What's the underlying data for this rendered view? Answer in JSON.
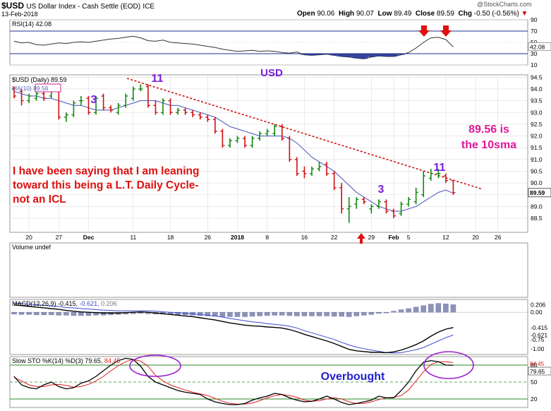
{
  "header": {
    "ticker": "$USD",
    "name": "US Dollar Index - Cash Settle (EOD)",
    "exchange": "ICE",
    "date": "13-Feb-2018",
    "open_label": "Open",
    "open": "90.06",
    "high_label": "High",
    "high": "90.07",
    "low_label": "Low",
    "low": "89.49",
    "close_label": "Close",
    "close": "89.59",
    "chg_label": "Chg",
    "chg": "-0.50 (-0.56%)",
    "chg_arrow": "▼",
    "brand": "@StockCharts.com"
  },
  "colors": {
    "up": "#118811",
    "down": "#cc1111",
    "ma": "#5563c0",
    "rsi_fill": "#1f2f90",
    "trend": "#cc1111",
    "annotation_red": "#dd1111",
    "annotation_magenta": "#e0189a",
    "annotation_purple": "#7a1fd8",
    "annotation_blue": "#1f1fcc",
    "grid": "#dddddd"
  },
  "chart_data": [
    {
      "type": "line",
      "title": "RSI(14) 42.08",
      "ylim": [
        10,
        90
      ],
      "y_ticks": [
        "90",
        "70",
        "50",
        "30",
        "10"
      ],
      "value_label": "42.08",
      "x": [
        "Nov 16",
        "Nov 17",
        "Nov 20",
        "Nov 21",
        "Nov 22",
        "Nov 24",
        "Nov 27",
        "Nov 28",
        "Nov 29",
        "Nov 30",
        "Dec 1",
        "Dec 4",
        "Dec 5",
        "Dec 6",
        "Dec 7",
        "Dec 8",
        "Dec 11",
        "Dec 12",
        "Dec 13",
        "Dec 14",
        "Dec 15",
        "Dec 18",
        "Dec 19",
        "Dec 20",
        "Dec 21",
        "Dec 22",
        "Dec 26",
        "Dec 27",
        "Dec 28",
        "Dec 29",
        "Jan 2",
        "Jan 3",
        "Jan 4",
        "Jan 5",
        "Jan 8",
        "Jan 9",
        "Jan 10",
        "Jan 11",
        "Jan 12",
        "Jan 16",
        "Jan 17",
        "Jan 18",
        "Jan 19",
        "Jan 22",
        "Jan 23",
        "Jan 24",
        "Jan 25",
        "Jan 26",
        "Jan 29",
        "Jan 30",
        "Jan 31",
        "Feb 1",
        "Feb 2",
        "Feb 5",
        "Feb 6",
        "Feb 7",
        "Feb 8",
        "Feb 9",
        "Feb 12",
        "Feb 13"
      ],
      "values": [
        52,
        49,
        50,
        46,
        45,
        47,
        49,
        48,
        50,
        51,
        50,
        52,
        54,
        56,
        57,
        59,
        61,
        58,
        53,
        52,
        54,
        50,
        49,
        48,
        47,
        45,
        43,
        41,
        38,
        36,
        34,
        35,
        36,
        34,
        35,
        34,
        32,
        31,
        33,
        28,
        27,
        28,
        29,
        27,
        25,
        24,
        22,
        21,
        24,
        26,
        25,
        25,
        28,
        32,
        40,
        50,
        58,
        59,
        55,
        42
      ]
    },
    {
      "type": "candlestick",
      "title": "$USD (Daily) 89.59",
      "ylim": [
        87.9,
        94.6
      ],
      "y_ticks": [
        "94.5",
        "94.0",
        "93.5",
        "93.0",
        "92.5",
        "92.0",
        "91.5",
        "91.0",
        "90.5",
        "90.0",
        "89.5",
        "89.0",
        "88.5"
      ],
      "x_ticks": [
        "20",
        "27",
        "Dec",
        "11",
        "18",
        "26",
        "2018",
        "8",
        "16",
        "22",
        "29",
        "Feb",
        "5",
        "12",
        "20",
        "26"
      ],
      "x_tick_positions_index": [
        2,
        6,
        10,
        16,
        21,
        26,
        30,
        34,
        39,
        43,
        48,
        51,
        53,
        58,
        63,
        67
      ],
      "open": [
        94.0,
        93.9,
        93.5,
        93.6,
        93.8,
        93.7,
        93.9,
        92.8,
        92.9,
        93.5,
        93.6,
        93.0,
        93.7,
        93.2,
        93.0,
        93.3,
        93.6,
        94.0,
        94.1,
        93.3,
        93.0,
        93.5,
        93.0,
        93.1,
        93.0,
        92.9,
        92.8,
        92.7,
        92.2,
        91.6,
        91.8,
        91.9,
        91.6,
        91.9,
        92.1,
        92.1,
        92.4,
        91.9,
        91.0,
        90.5,
        90.4,
        90.6,
        90.8,
        90.4,
        89.8,
        88.9,
        89.1,
        89.3,
        88.9,
        89.0,
        89.2,
        88.8,
        88.7,
        89.1,
        89.2,
        89.5,
        90.2,
        90.4,
        90.3,
        90.1
      ],
      "close": [
        93.7,
        93.5,
        93.7,
        93.8,
        93.6,
        93.9,
        92.8,
        92.9,
        93.4,
        93.5,
        93.0,
        93.6,
        93.2,
        93.1,
        93.3,
        93.7,
        94.0,
        94.0,
        93.3,
        93.0,
        93.5,
        93.0,
        93.1,
        93.0,
        92.9,
        92.8,
        92.7,
        92.2,
        91.6,
        91.8,
        91.9,
        91.6,
        91.9,
        92.1,
        92.2,
        92.4,
        91.9,
        91.0,
        90.4,
        90.4,
        90.6,
        90.7,
        90.4,
        89.8,
        88.9,
        89.0,
        89.3,
        89.2,
        89.0,
        89.2,
        88.8,
        88.6,
        89.1,
        89.3,
        89.6,
        90.3,
        90.4,
        90.4,
        90.1,
        89.59
      ],
      "high": [
        94.1,
        94.0,
        93.8,
        93.9,
        93.9,
        94.0,
        94.0,
        93.0,
        93.5,
        93.7,
        93.7,
        93.7,
        93.8,
        93.3,
        93.4,
        93.8,
        94.1,
        94.2,
        94.2,
        93.5,
        93.6,
        93.6,
        93.2,
        93.2,
        93.1,
        93.0,
        92.9,
        92.8,
        92.3,
        91.9,
        92.0,
        92.0,
        92.0,
        92.2,
        92.3,
        92.5,
        92.5,
        92.0,
        91.1,
        90.7,
        90.7,
        90.9,
        90.9,
        90.5,
        90.0,
        89.4,
        89.4,
        89.4,
        89.1,
        89.3,
        89.3,
        88.9,
        89.2,
        89.4,
        89.8,
        90.5,
        90.6,
        90.6,
        90.4,
        90.07
      ],
      "low": [
        93.6,
        93.3,
        93.4,
        93.5,
        93.5,
        93.6,
        92.7,
        92.6,
        92.8,
        93.3,
        92.9,
        92.9,
        93.1,
        93.0,
        92.9,
        93.2,
        93.5,
        93.9,
        93.2,
        92.9,
        92.9,
        92.9,
        92.9,
        92.9,
        92.8,
        92.7,
        92.6,
        92.1,
        91.5,
        91.5,
        91.7,
        91.5,
        91.5,
        91.8,
        92.0,
        92.0,
        91.8,
        90.9,
        90.3,
        90.2,
        90.3,
        90.5,
        90.3,
        89.7,
        88.7,
        88.3,
        88.9,
        89.1,
        88.7,
        88.9,
        88.7,
        88.5,
        88.6,
        89.0,
        89.1,
        89.4,
        90.1,
        90.2,
        90.0,
        89.49
      ],
      "ma_label": "MA(10) 89.56",
      "ma_value": "89.56",
      "ma": [
        93.9,
        93.8,
        93.7,
        93.7,
        93.6,
        93.6,
        93.5,
        93.4,
        93.3,
        93.3,
        93.2,
        93.1,
        93.1,
        93.1,
        93.2,
        93.3,
        93.4,
        93.5,
        93.5,
        93.5,
        93.4,
        93.3,
        93.3,
        93.2,
        93.1,
        93.0,
        92.9,
        92.8,
        92.6,
        92.4,
        92.3,
        92.2,
        92.1,
        92.0,
        92.0,
        92.0,
        92.0,
        91.9,
        91.7,
        91.4,
        91.1,
        90.9,
        90.7,
        90.5,
        90.2,
        89.9,
        89.6,
        89.4,
        89.2,
        89.0,
        88.9,
        88.8,
        88.8,
        88.9,
        89.0,
        89.2,
        89.4,
        89.6,
        89.7,
        89.56
      ],
      "last_label": "89.59",
      "annotations": {
        "cycle_11_left": "11",
        "cycle_3_left": "3",
        "cycle_3_right": "3",
        "cycle_11_right": "11",
        "usd": "USD",
        "note": [
          "I have been saying that I am leaning",
          "toward this being a L.T. Daily Cycle-",
          "not an  ICL"
        ],
        "sma_note": [
          "89.56 is",
          "the 10sma"
        ]
      }
    },
    {
      "type": "bar",
      "title": "Volume undef",
      "values": []
    },
    {
      "type": "bar",
      "title": "MACD(12,26,9) -0.415, -0.621, 0.206",
      "title_parts": [
        "MACD(12,26,9)",
        "-0.415,",
        "-0.621,",
        "0.206"
      ],
      "y_ticks": [
        "0.206",
        "0.00",
        "-0.415",
        "-0.621",
        "-0.75",
        "-1.00"
      ],
      "ylim": [
        -1.15,
        0.35
      ],
      "histogram": [
        -0.05,
        -0.06,
        -0.06,
        -0.07,
        -0.07,
        -0.07,
        -0.08,
        -0.08,
        -0.09,
        -0.09,
        -0.09,
        -0.08,
        -0.08,
        -0.07,
        -0.06,
        -0.05,
        -0.04,
        -0.03,
        -0.04,
        -0.05,
        -0.05,
        -0.06,
        -0.07,
        -0.07,
        -0.08,
        -0.09,
        -0.1,
        -0.11,
        -0.12,
        -0.12,
        -0.12,
        -0.12,
        -0.11,
        -0.1,
        -0.09,
        -0.08,
        -0.08,
        -0.09,
        -0.1,
        -0.1,
        -0.1,
        -0.1,
        -0.1,
        -0.11,
        -0.11,
        -0.12,
        -0.1,
        -0.08,
        -0.06,
        -0.03,
        0.0,
        0.03,
        0.07,
        0.1,
        0.14,
        0.18,
        0.22,
        0.24,
        0.23,
        0.206
      ],
      "macd": [
        0.2,
        0.18,
        0.16,
        0.14,
        0.12,
        0.1,
        0.08,
        0.05,
        0.03,
        0.01,
        0.0,
        -0.01,
        -0.02,
        -0.02,
        -0.02,
        -0.01,
        0.0,
        0.01,
        0.0,
        -0.02,
        -0.04,
        -0.06,
        -0.08,
        -0.1,
        -0.12,
        -0.15,
        -0.18,
        -0.21,
        -0.25,
        -0.29,
        -0.32,
        -0.35,
        -0.37,
        -0.38,
        -0.4,
        -0.41,
        -0.43,
        -0.47,
        -0.53,
        -0.6,
        -0.66,
        -0.72,
        -0.78,
        -0.85,
        -0.93,
        -1.01,
        -1.05,
        -1.07,
        -1.09,
        -1.09,
        -1.1,
        -1.08,
        -1.03,
        -0.96,
        -0.88,
        -0.78,
        -0.65,
        -0.54,
        -0.46,
        -0.415
      ],
      "signal": [
        0.25,
        0.24,
        0.22,
        0.21,
        0.19,
        0.17,
        0.16,
        0.13,
        0.12,
        0.1,
        0.09,
        0.07,
        0.06,
        0.05,
        0.04,
        0.04,
        0.04,
        0.04,
        0.04,
        0.03,
        0.01,
        0.0,
        -0.01,
        -0.03,
        -0.04,
        -0.06,
        -0.08,
        -0.1,
        -0.13,
        -0.17,
        -0.2,
        -0.23,
        -0.26,
        -0.28,
        -0.31,
        -0.33,
        -0.35,
        -0.38,
        -0.43,
        -0.5,
        -0.56,
        -0.62,
        -0.68,
        -0.74,
        -0.82,
        -0.89,
        -0.95,
        -0.99,
        -1.03,
        -1.06,
        -1.1,
        -1.11,
        -1.1,
        -1.06,
        -1.02,
        -0.96,
        -0.87,
        -0.78,
        -0.69,
        -0.621
      ]
    },
    {
      "type": "line",
      "title": "Slow STO %K(14) %D(3) 79.65, 84.45",
      "title_parts": [
        "Slow STO %K(14) %D(3) 79.65,",
        "84.45"
      ],
      "ylim": [
        5,
        95
      ],
      "y_ticks": [
        "80",
        "50",
        "20"
      ],
      "value_labels": [
        "84.45",
        "79.65"
      ],
      "k": [
        60,
        45,
        40,
        38,
        45,
        50,
        42,
        38,
        40,
        48,
        52,
        60,
        70,
        80,
        88,
        92,
        90,
        78,
        60,
        50,
        45,
        40,
        35,
        32,
        30,
        28,
        20,
        15,
        12,
        10,
        10,
        12,
        18,
        22,
        25,
        30,
        28,
        22,
        18,
        15,
        16,
        20,
        25,
        20,
        14,
        10,
        12,
        15,
        18,
        25,
        22,
        22,
        35,
        50,
        70,
        85,
        88,
        86,
        80,
        79.65
      ],
      "d": [
        58,
        52,
        45,
        42,
        42,
        45,
        46,
        44,
        41,
        42,
        46,
        52,
        60,
        70,
        79,
        86,
        90,
        87,
        78,
        62,
        52,
        45,
        40,
        36,
        32,
        29,
        26,
        21,
        16,
        12,
        11,
        11,
        13,
        17,
        22,
        26,
        28,
        26,
        23,
        18,
        16,
        17,
        20,
        22,
        20,
        15,
        12,
        12,
        15,
        19,
        22,
        23,
        26,
        36,
        52,
        68,
        81,
        86,
        86,
        84.45
      ],
      "annotation": "Overbought"
    }
  ]
}
